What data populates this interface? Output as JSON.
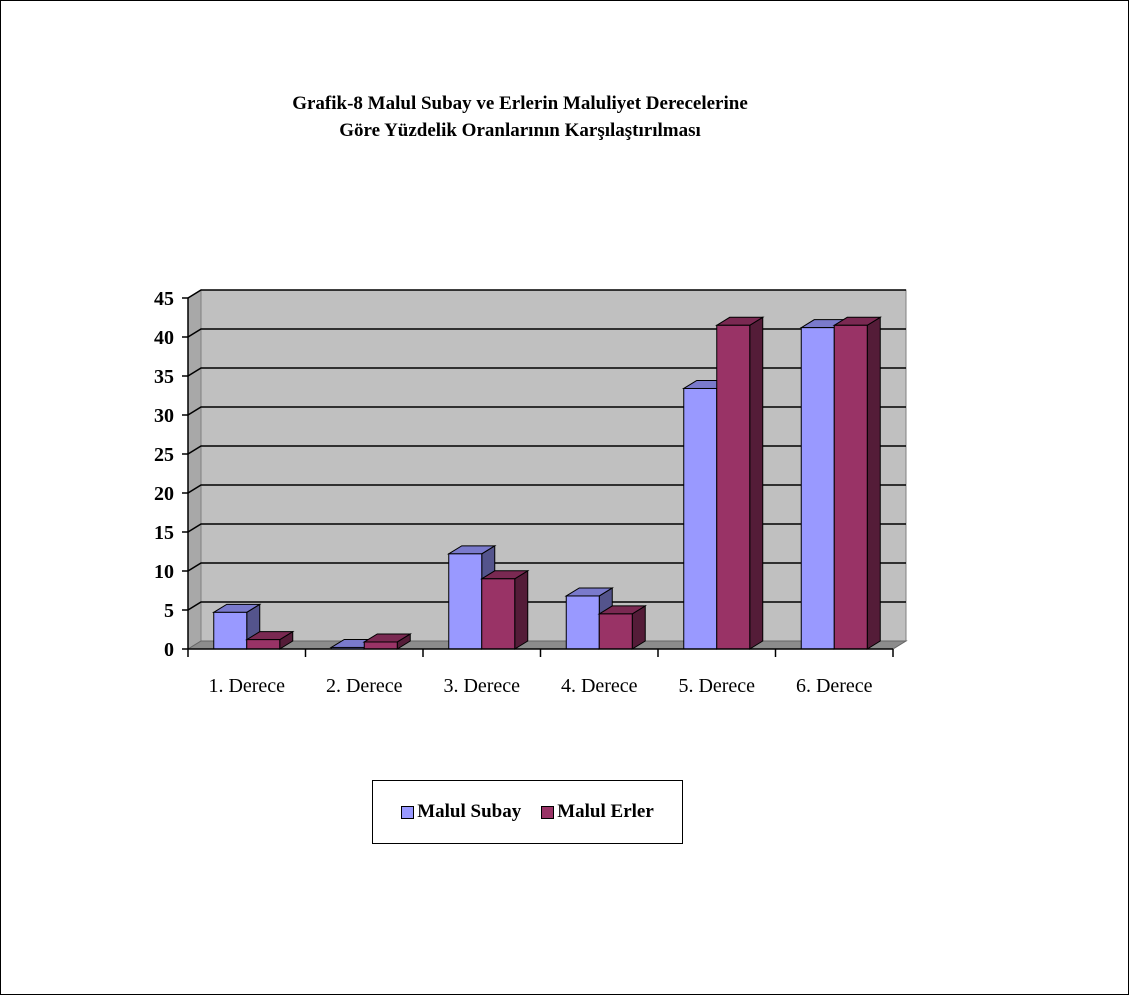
{
  "chart_data": {
    "type": "bar",
    "title_lines": [
      "Grafik-8 Malul Subay ve Erlerin Maluliyet Derecelerine",
      "Göre Yüzdelik Oranlarının Karşılaştırılması"
    ],
    "categories": [
      "1. Derece",
      "2. Derece",
      "3. Derece",
      "4. Derece",
      "5. Derece",
      "6. Derece"
    ],
    "series": [
      {
        "name": "Malul Subay",
        "values": [
          4.7,
          0.2,
          12.2,
          6.8,
          33.4,
          41.2
        ],
        "color": "#9999FF"
      },
      {
        "name": "Malul Erler",
        "values": [
          1.2,
          0.9,
          9.0,
          4.5,
          41.5,
          41.5
        ],
        "color": "#993366"
      }
    ],
    "ylim": [
      0,
      45
    ],
    "yticks": [
      0,
      5,
      10,
      15,
      20,
      25,
      30,
      35,
      40,
      45
    ],
    "grid": true,
    "legend_position": "bottom",
    "plot_background": "#C0C0C0"
  }
}
